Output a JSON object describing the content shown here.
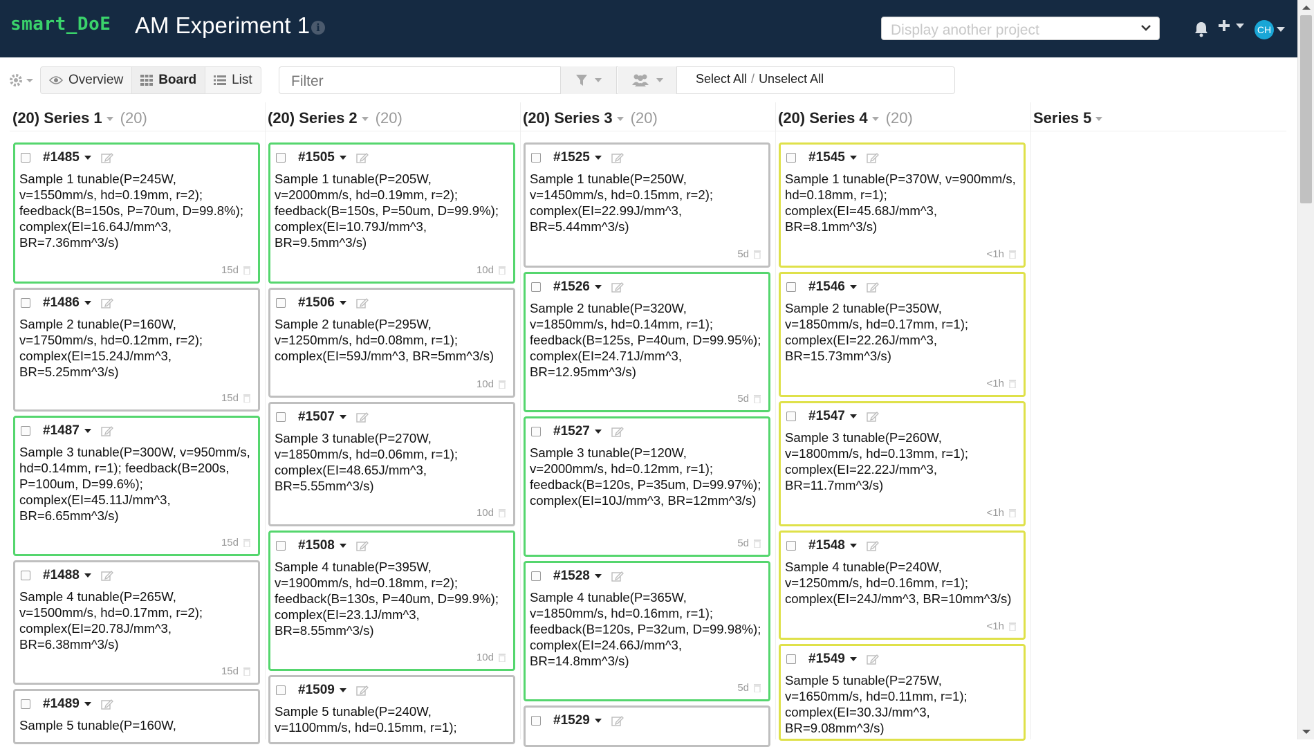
{
  "app": {
    "brand": "smart_DoE",
    "project_title": "AM Experiment 1"
  },
  "nav": {
    "project_select_placeholder": "Display another project",
    "avatar_initials": "CH"
  },
  "toolbar": {
    "views": [
      "Overview",
      "Board",
      "List"
    ],
    "active_view": "Board",
    "filter_placeholder": "Filter",
    "select_all": "Select All",
    "separator": "/",
    "unselect_all": "Unselect All"
  },
  "columns": [
    {
      "count_label": "(20)",
      "name": "Series 1",
      "total_label": "(20)",
      "cards": [
        {
          "id": "#1485",
          "text": "Sample 1 tunable(P=245W, v=1550mm/s, hd=0.19mm, r=2); feedback(B=150s, P=70um, D=99.8%); complex(EI=16.64J/mm^3, BR=7.36mm^3/s)",
          "age": "15d",
          "status": "green"
        },
        {
          "id": "#1486",
          "text": "Sample 2 tunable(P=160W, v=1750mm/s, hd=0.12mm, r=2); complex(EI=15.24J/mm^3, BR=5.25mm^3/s)",
          "age": "15d",
          "status": "gray"
        },
        {
          "id": "#1487",
          "text": "Sample 3 tunable(P=300W, v=950mm/s, hd=0.14mm, r=1); feedback(B=200s, P=100um, D=99.6%); complex(EI=45.11J/mm^3, BR=6.65mm^3/s)",
          "age": "15d",
          "status": "green"
        },
        {
          "id": "#1488",
          "text": "Sample 4 tunable(P=265W, v=1500mm/s, hd=0.17mm, r=2); complex(EI=20.78J/mm^3, BR=6.38mm^3/s)",
          "age": "15d",
          "status": "gray"
        },
        {
          "id": "#1489",
          "text": "Sample 5 tunable(P=160W,",
          "age": "",
          "status": "gray"
        }
      ]
    },
    {
      "count_label": "(20)",
      "name": "Series 2",
      "total_label": "(20)",
      "cards": [
        {
          "id": "#1505",
          "text": "Sample 1 tunable(P=205W, v=2000mm/s, hd=0.19mm, r=2); feedback(B=150s, P=50um, D=99.9%); complex(EI=10.79J/mm^3, BR=9.5mm^3/s)",
          "age": "10d",
          "status": "green"
        },
        {
          "id": "#1506",
          "text": "Sample 2 tunable(P=295W, v=1250mm/s, hd=0.08mm, r=1); complex(EI=59J/mm^3, BR=5mm^3/s)",
          "age": "10d",
          "status": "gray"
        },
        {
          "id": "#1507",
          "text": "Sample 3 tunable(P=270W, v=1850mm/s, hd=0.06mm, r=1); complex(EI=48.65J/mm^3, BR=5.55mm^3/s)",
          "age": "10d",
          "status": "gray"
        },
        {
          "id": "#1508",
          "text": "Sample 4 tunable(P=395W, v=1900mm/s, hd=0.18mm, r=2); feedback(B=130s, P=40um, D=99.9%); complex(EI=23.1J/mm^3, BR=8.55mm^3/s)",
          "age": "10d",
          "status": "green"
        },
        {
          "id": "#1509",
          "text": "Sample 5 tunable(P=240W, v=1100mm/s, hd=0.15mm, r=1);",
          "age": "",
          "status": "gray"
        }
      ]
    },
    {
      "count_label": "(20)",
      "name": "Series 3",
      "total_label": "(20)",
      "cards": [
        {
          "id": "#1525",
          "text": "Sample 1 tunable(P=250W, v=1450mm/s, hd=0.15mm, r=2); complex(EI=22.99J/mm^3, BR=5.44mm^3/s)",
          "age": "5d",
          "status": "gray"
        },
        {
          "id": "#1526",
          "text": "Sample 2 tunable(P=320W, v=1850mm/s, hd=0.14mm, r=1); feedback(B=125s, P=40um, D=99.95%); complex(EI=24.71J/mm^3, BR=12.95mm^3/s)",
          "age": "5d",
          "status": "green"
        },
        {
          "id": "#1527",
          "text": "Sample 3 tunable(P=120W, v=2000mm/s, hd=0.12mm, r=1); feedback(B=120s, P=35um, D=99.97%); complex(EI=10J/mm^3, BR=12mm^3/s)",
          "age": "5d",
          "status": "green"
        },
        {
          "id": "#1528",
          "text": "Sample 4 tunable(P=365W, v=1850mm/s, hd=0.16mm, r=1); feedback(B=120s, P=32um, D=99.98%); complex(EI=24.66J/mm^3, BR=14.8mm^3/s)",
          "age": "5d",
          "status": "green"
        },
        {
          "id": "#1529",
          "text": "",
          "age": "",
          "status": "gray"
        }
      ]
    },
    {
      "count_label": "(20)",
      "name": "Series 4",
      "total_label": "(20)",
      "cards": [
        {
          "id": "#1545",
          "text": "Sample 1 tunable(P=370W, v=900mm/s, hd=0.18mm, r=1); complex(EI=45.68J/mm^3, BR=8.1mm^3/s)",
          "age": "<1h",
          "status": "yellow"
        },
        {
          "id": "#1546",
          "text": "Sample 2 tunable(P=350W, v=1850mm/s, hd=0.17mm, r=1); complex(EI=22.26J/mm^3, BR=15.73mm^3/s)",
          "age": "<1h",
          "status": "yellow"
        },
        {
          "id": "#1547",
          "text": "Sample 3 tunable(P=260W, v=1800mm/s, hd=0.13mm, r=1); complex(EI=22.22J/mm^3, BR=11.7mm^3/s)",
          "age": "<1h",
          "status": "yellow"
        },
        {
          "id": "#1548",
          "text": "Sample 4 tunable(P=240W, v=1250mm/s, hd=0.16mm, r=1); complex(EI=24J/mm^3, BR=10mm^3/s)",
          "age": "<1h",
          "status": "yellow"
        },
        {
          "id": "#1549",
          "text": "Sample 5 tunable(P=275W, v=1650mm/s, hd=0.11mm, r=1); complex(EI=30.3J/mm^3, BR=9.08mm^3/s)",
          "age": "",
          "status": "yellow"
        }
      ]
    },
    {
      "count_label": "",
      "name": "Series 5",
      "total_label": "",
      "cards": []
    }
  ],
  "colors": {
    "navbar": "#152a42",
    "brand": "#3ad36b",
    "done_border": "#55d66e",
    "pending_border": "#dfe14a",
    "default_border": "#bfbfbf"
  }
}
